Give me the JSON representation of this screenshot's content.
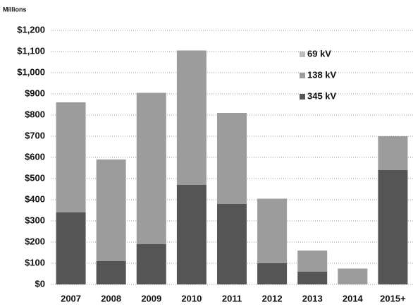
{
  "chart_data": {
    "type": "stacked_bar",
    "y_axis_label": "Millions",
    "categories": [
      "2007",
      "2008",
      "2009",
      "2010",
      "2011",
      "2012",
      "2013",
      "2014",
      "2015+"
    ],
    "series": [
      {
        "name": "345 kV",
        "color": "#555555",
        "values": [
          340,
          110,
          190,
          470,
          380,
          100,
          60,
          0,
          540
        ]
      },
      {
        "name": "138 kV",
        "color": "#9c9c9c",
        "values": [
          520,
          480,
          715,
          635,
          430,
          305,
          100,
          75,
          160
        ]
      },
      {
        "name": "69 kV",
        "color": "#bdbdbd",
        "values": [
          0,
          0,
          0,
          0,
          0,
          0,
          0,
          0,
          0
        ]
      }
    ],
    "ylim": [
      0,
      1200
    ],
    "yticks": [
      {
        "value": 0,
        "label": "$0"
      },
      {
        "value": 100,
        "label": "$100"
      },
      {
        "value": 200,
        "label": "$200"
      },
      {
        "value": 300,
        "label": "$300"
      },
      {
        "value": 400,
        "label": "$400"
      },
      {
        "value": 500,
        "label": "$500"
      },
      {
        "value": 600,
        "label": "$600"
      },
      {
        "value": 700,
        "label": "$700"
      },
      {
        "value": 800,
        "label": "$800"
      },
      {
        "value": 900,
        "label": "$900"
      },
      {
        "value": 1000,
        "label": "$1,000"
      },
      {
        "value": 1100,
        "label": "$1,100"
      },
      {
        "value": 1200,
        "label": "$1,200"
      }
    ],
    "grid": true
  }
}
